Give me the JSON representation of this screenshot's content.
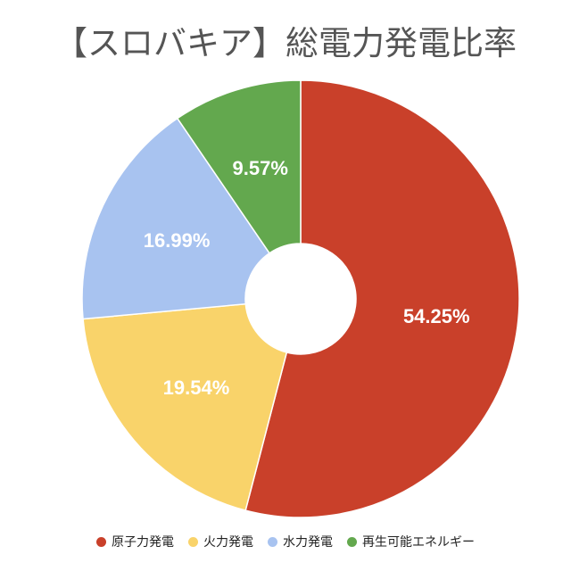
{
  "chart_data": {
    "type": "pie",
    "title": "【スロバキア】総電力発電比率",
    "categories": [
      "原子力発電",
      "火力発電",
      "水力発電",
      "再生可能エネルギー"
    ],
    "values": [
      54.25,
      19.54,
      16.99,
      9.57
    ],
    "value_labels": [
      "54.25%",
      "19.54%",
      "16.99%",
      "9.57%"
    ],
    "colors": [
      "#c9402a",
      "#f9d36a",
      "#a8c3f0",
      "#63a84e"
    ],
    "donut": true,
    "legend_position": "bottom"
  }
}
